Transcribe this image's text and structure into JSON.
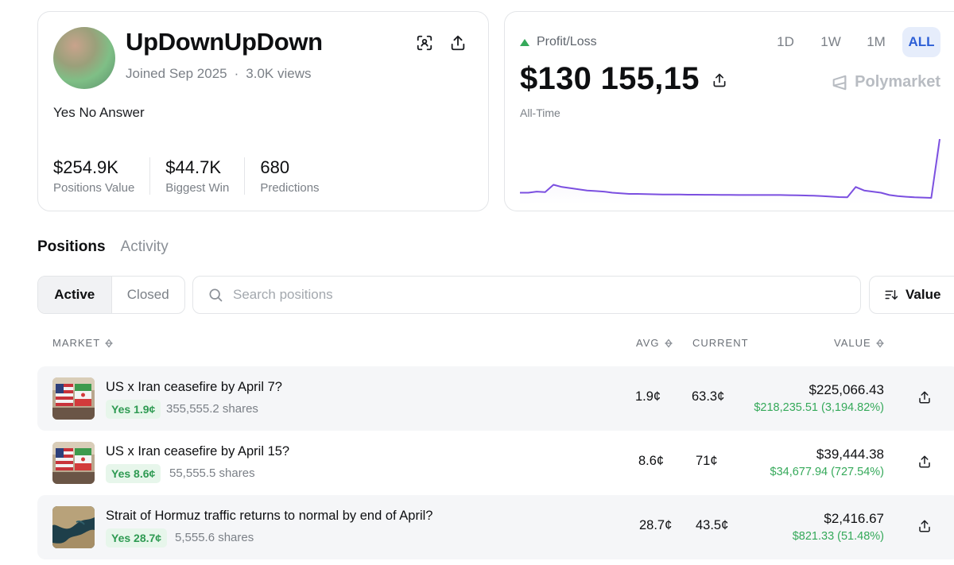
{
  "profile": {
    "username": "UpDownUpDown",
    "joined": "Joined Sep 2025",
    "views": "3.0K views",
    "bio": "Yes No Answer",
    "stats": [
      {
        "value": "$254.9K",
        "label": "Positions Value"
      },
      {
        "value": "$44.7K",
        "label": "Biggest Win"
      },
      {
        "value": "680",
        "label": "Predictions"
      }
    ]
  },
  "pnl": {
    "label": "Profit/Loss",
    "value": "$130 155,15",
    "period": "All-Time",
    "brand": "Polymarket",
    "ranges": [
      "1D",
      "1W",
      "1M",
      "ALL"
    ],
    "active_range": "ALL",
    "series": [
      5,
      5,
      6,
      5.5,
      12,
      10,
      9,
      8,
      7,
      6.5,
      6,
      5,
      4.5,
      4,
      4,
      3.8,
      3.6,
      3.5,
      3.5,
      3.4,
      3.3,
      3.3,
      3.2,
      3.2,
      3.1,
      3.1,
      3,
      3,
      3,
      3,
      3,
      3,
      2.9,
      2.8,
      2.6,
      2.4,
      2,
      1.6,
      1.2,
      1,
      10,
      7,
      6,
      5,
      3,
      2,
      1.5,
      1,
      0.8,
      0.5,
      52
    ],
    "accent": "#7b4fe0"
  },
  "nav": {
    "tabs": [
      "Positions",
      "Activity"
    ],
    "filter": [
      "Active",
      "Closed"
    ],
    "search_placeholder": "Search positions",
    "sort_label": "Value"
  },
  "table": {
    "headers": {
      "market": "MARKET",
      "avg": "AVG",
      "current": "CURRENT",
      "value": "VALUE"
    },
    "rows": [
      {
        "title": "US x Iran ceasefire by April 7?",
        "badge": "Yes 1.9¢",
        "shares": "355,555.2 shares",
        "avg": "1.9¢",
        "current": "63.3¢",
        "value": "$225,066.43",
        "pnl": "$218,235.51 (3,194.82%)",
        "thumb": "flags"
      },
      {
        "title": "US x Iran ceasefire by April 15?",
        "badge": "Yes 8.6¢",
        "shares": "55,555.5 shares",
        "avg": "8.6¢",
        "current": "71¢",
        "value": "$39,444.38",
        "pnl": "$34,677.94 (727.54%)",
        "thumb": "flags"
      },
      {
        "title": "Strait of Hormuz traffic returns to normal by end of April?",
        "badge": "Yes 28.7¢",
        "shares": "5,555.6 shares",
        "avg": "28.7¢",
        "current": "43.5¢",
        "value": "$2,416.67",
        "pnl": "$821.33 (51.48%)",
        "thumb": "map"
      }
    ]
  }
}
